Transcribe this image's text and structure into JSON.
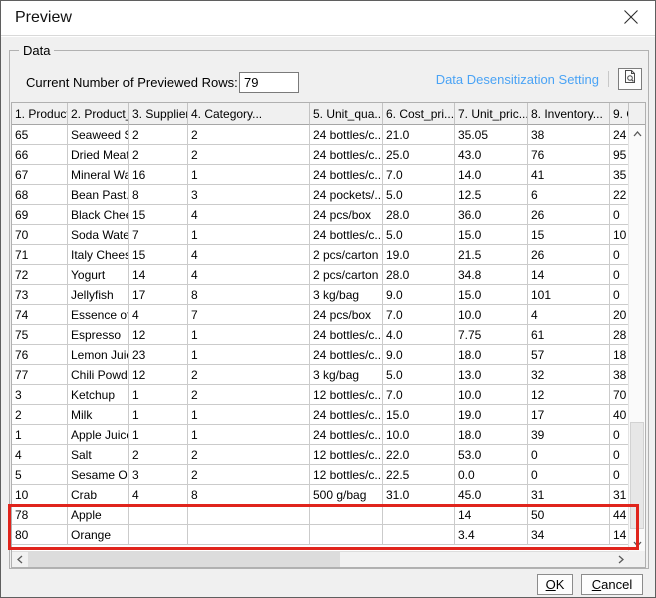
{
  "window": {
    "title": "Preview"
  },
  "data_group": {
    "label": "Data",
    "rows_label": "Current Number of Previewed Rows:",
    "rows_value": "79",
    "desensitization_link": "Data Desensitization Setting"
  },
  "table": {
    "columns": [
      "1. ProductI...",
      "2. Product_...",
      "3. SupplierI...",
      "4. Category...",
      "5. Unit_qua...",
      "6. Cost_pri...",
      "7. Unit_pric...",
      "8. Inventory...",
      "9. O"
    ],
    "rows": [
      [
        "65",
        "Seaweed S...",
        "2",
        "2",
        "24 bottles/c...",
        "21.0",
        "35.05",
        "38",
        "24"
      ],
      [
        "66",
        "Dried Meat ...",
        "2",
        "2",
        "24 bottles/c...",
        "25.0",
        "43.0",
        "76",
        "95"
      ],
      [
        "67",
        "Mineral Wa...",
        "16",
        "1",
        "24 bottles/c...",
        "7.0",
        "14.0",
        "41",
        "35"
      ],
      [
        "68",
        "Bean Past...",
        "8",
        "3",
        "24 pockets/...",
        "5.0",
        "12.5",
        "6",
        "22"
      ],
      [
        "69",
        "Black Chee...",
        "15",
        "4",
        "24 pcs/box",
        "28.0",
        "36.0",
        "26",
        "0"
      ],
      [
        "70",
        "Soda Water",
        "7",
        "1",
        "24 bottles/c...",
        "5.0",
        "15.0",
        "15",
        "10"
      ],
      [
        "71",
        "Italy Cheese",
        "15",
        "4",
        "2 pcs/carton",
        "19.0",
        "21.5",
        "26",
        "0"
      ],
      [
        "72",
        "Yogurt",
        "14",
        "4",
        "2 pcs/carton",
        "28.0",
        "34.8",
        "14",
        "0"
      ],
      [
        "73",
        "Jellyfish",
        "17",
        "8",
        "3 kg/bag",
        "9.0",
        "15.0",
        "101",
        "0"
      ],
      [
        "74",
        "Essence of...",
        "4",
        "7",
        "24 pcs/box",
        "7.0",
        "10.0",
        "4",
        "20"
      ],
      [
        "75",
        "Espresso",
        "12",
        "1",
        "24 bottles/c...",
        "4.0",
        "7.75",
        "61",
        "28"
      ],
      [
        "76",
        "Lemon Juice",
        "23",
        "1",
        "24 bottles/c...",
        "9.0",
        "18.0",
        "57",
        "18"
      ],
      [
        "77",
        "Chili Powder",
        "12",
        "2",
        "3 kg/bag",
        "5.0",
        "13.0",
        "32",
        "38"
      ],
      [
        "3",
        "Ketchup",
        "1",
        "2",
        "12 bottles/c...",
        "7.0",
        "10.0",
        "12",
        "70"
      ],
      [
        "2",
        "Milk",
        "1",
        "1",
        "24 bottles/c...",
        "15.0",
        "19.0",
        "17",
        "40"
      ],
      [
        "1",
        "Apple Juice",
        "1",
        "1",
        "24 bottles/c...",
        "10.0",
        "18.0",
        "39",
        "0"
      ],
      [
        "4",
        "Salt",
        "2",
        "2",
        "12 bottles/c...",
        "22.0",
        "53.0",
        "0",
        "0"
      ],
      [
        "5",
        "Sesame Oil",
        "3",
        "2",
        "12 bottles/c...",
        "22.5",
        "0.0",
        "0",
        "0"
      ],
      [
        "10",
        "Crab",
        "4",
        "8",
        "500 g/bag",
        "31.0",
        "45.0",
        "31",
        "31"
      ],
      [
        "78",
        "Apple",
        "",
        "",
        "",
        "",
        "14",
        "50",
        "44"
      ],
      [
        "80",
        "Orange",
        "",
        "",
        "",
        "",
        "3.4",
        "34",
        "14"
      ]
    ],
    "highlighted_row_ids": [
      "78",
      "80"
    ]
  },
  "buttons": {
    "ok_label": "OK",
    "ok_mnemonic": "O",
    "ok_rest": "K",
    "cancel_label": "Cancel",
    "cancel_mnemonic": "C",
    "cancel_rest": "ancel"
  },
  "colors": {
    "link_blue": "#4aa3f5",
    "highlight_red": "#e0241c",
    "dialog_bg": "#f0f0f0"
  }
}
